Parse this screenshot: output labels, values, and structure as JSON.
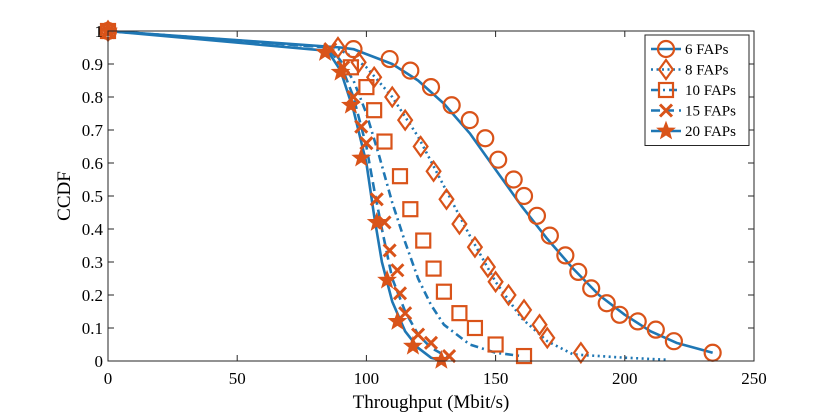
{
  "chart_data": {
    "type": "line",
    "title": "",
    "xlabel": "Throughput (Mbit/s)",
    "ylabel": "CCDF",
    "xlim": [
      0,
      250
    ],
    "ylim": [
      0,
      1
    ],
    "xticks": [
      0,
      50,
      100,
      150,
      200,
      250
    ],
    "yticks": [
      0,
      0.1,
      0.2,
      0.3,
      0.4,
      0.5,
      0.6,
      0.7,
      0.8,
      0.9,
      1
    ],
    "ytick_labels": [
      "0",
      "0.1",
      "0.2",
      "0.3",
      "0.4",
      "0.5",
      "0.6",
      "0.7",
      "0.8",
      "0.9",
      "1"
    ],
    "grid": false,
    "legend_position": "top-right",
    "line_color": "#1f77b4",
    "marker_color": "#d95319",
    "series": [
      {
        "name": "6 FAPs",
        "marker": "circle",
        "line_style": "solid",
        "curve": [
          [
            0,
            1
          ],
          [
            90,
            0.95
          ],
          [
            95,
            0.945
          ],
          [
            100,
            0.93
          ],
          [
            110,
            0.9
          ],
          [
            120,
            0.85
          ],
          [
            130,
            0.78
          ],
          [
            140,
            0.69
          ],
          [
            150,
            0.58
          ],
          [
            160,
            0.47
          ],
          [
            170,
            0.37
          ],
          [
            180,
            0.28
          ],
          [
            190,
            0.2
          ],
          [
            200,
            0.14
          ],
          [
            210,
            0.09
          ],
          [
            220,
            0.055
          ],
          [
            234,
            0.025
          ]
        ],
        "markers": [
          [
            0,
            1
          ],
          [
            95,
            0.945
          ],
          [
            109,
            0.915
          ],
          [
            117,
            0.88
          ],
          [
            125,
            0.83
          ],
          [
            133,
            0.775
          ],
          [
            140,
            0.73
          ],
          [
            146,
            0.675
          ],
          [
            151,
            0.61
          ],
          [
            157,
            0.55
          ],
          [
            161,
            0.5
          ],
          [
            166,
            0.44
          ],
          [
            171,
            0.38
          ],
          [
            177,
            0.32
          ],
          [
            182,
            0.27
          ],
          [
            187,
            0.22
          ],
          [
            193,
            0.175
          ],
          [
            198,
            0.14
          ],
          [
            205,
            0.12
          ],
          [
            212,
            0.095
          ],
          [
            219,
            0.06
          ],
          [
            234,
            0.025
          ]
        ]
      },
      {
        "name": "8 FAPs",
        "marker": "diamond",
        "line_style": "dotted",
        "curve": [
          [
            0,
            1
          ],
          [
            88,
            0.95
          ],
          [
            95,
            0.92
          ],
          [
            100,
            0.89
          ],
          [
            110,
            0.8
          ],
          [
            120,
            0.68
          ],
          [
            130,
            0.53
          ],
          [
            140,
            0.38
          ],
          [
            150,
            0.24
          ],
          [
            160,
            0.13
          ],
          [
            170,
            0.06
          ],
          [
            180,
            0.02
          ],
          [
            200,
            0.01
          ],
          [
            216,
            0.004
          ]
        ],
        "markers": [
          [
            0,
            1
          ],
          [
            89,
            0.95
          ],
          [
            97,
            0.905
          ],
          [
            103,
            0.86
          ],
          [
            110,
            0.8
          ],
          [
            115,
            0.73
          ],
          [
            121,
            0.65
          ],
          [
            126,
            0.575
          ],
          [
            131,
            0.49
          ],
          [
            136,
            0.415
          ],
          [
            142,
            0.345
          ],
          [
            147,
            0.285
          ],
          [
            150,
            0.24
          ],
          [
            155,
            0.2
          ],
          [
            161,
            0.155
          ],
          [
            167,
            0.11
          ],
          [
            170,
            0.07
          ],
          [
            183,
            0.025
          ]
        ]
      },
      {
        "name": "10 FAPs",
        "marker": "square",
        "line_style": "dashdot",
        "curve": [
          [
            0,
            1
          ],
          [
            86,
            0.95
          ],
          [
            90,
            0.91
          ],
          [
            95,
            0.85
          ],
          [
            100,
            0.75
          ],
          [
            105,
            0.62
          ],
          [
            110,
            0.48
          ],
          [
            115,
            0.36
          ],
          [
            120,
            0.25
          ],
          [
            125,
            0.17
          ],
          [
            130,
            0.11
          ],
          [
            140,
            0.05
          ],
          [
            150,
            0.025
          ],
          [
            160,
            0.015
          ]
        ],
        "markers": [
          [
            0,
            1
          ],
          [
            94,
            0.89
          ],
          [
            100,
            0.83
          ],
          [
            103,
            0.76
          ],
          [
            107,
            0.665
          ],
          [
            113,
            0.56
          ],
          [
            117,
            0.46
          ],
          [
            122,
            0.365
          ],
          [
            126,
            0.28
          ],
          [
            130,
            0.21
          ],
          [
            136,
            0.145
          ],
          [
            142,
            0.1
          ],
          [
            150,
            0.05
          ],
          [
            161,
            0.015
          ]
        ]
      },
      {
        "name": "15 FAPs",
        "marker": "x",
        "line_style": "dashed",
        "curve": [
          [
            0,
            1
          ],
          [
            85,
            0.95
          ],
          [
            90,
            0.9
          ],
          [
            95,
            0.8
          ],
          [
            100,
            0.65
          ],
          [
            103,
            0.52
          ],
          [
            106,
            0.4
          ],
          [
            110,
            0.25
          ],
          [
            115,
            0.15
          ],
          [
            120,
            0.08
          ],
          [
            125,
            0.04
          ],
          [
            132,
            0.01
          ]
        ],
        "markers": [
          [
            0,
            1
          ],
          [
            86,
            0.945
          ],
          [
            91,
            0.89
          ],
          [
            95,
            0.8
          ],
          [
            98,
            0.71
          ],
          [
            100,
            0.66
          ],
          [
            104,
            0.49
          ],
          [
            107,
            0.42
          ],
          [
            109,
            0.335
          ],
          [
            112,
            0.275
          ],
          [
            113,
            0.205
          ],
          [
            115,
            0.145
          ],
          [
            120,
            0.08
          ],
          [
            125,
            0.055
          ],
          [
            132,
            0.015
          ]
        ]
      },
      {
        "name": "20 FAPs",
        "marker": "star",
        "line_style": "solid",
        "curve": [
          [
            0,
            1
          ],
          [
            85,
            0.94
          ],
          [
            90,
            0.88
          ],
          [
            95,
            0.76
          ],
          [
            100,
            0.6
          ],
          [
            103,
            0.44
          ],
          [
            106,
            0.3
          ],
          [
            110,
            0.18
          ],
          [
            115,
            0.09
          ],
          [
            120,
            0.04
          ],
          [
            125,
            0.01
          ],
          [
            129,
            0.002
          ]
        ],
        "markers": [
          [
            0,
            1
          ],
          [
            84,
            0.935
          ],
          [
            90,
            0.875
          ],
          [
            94,
            0.775
          ],
          [
            98,
            0.615
          ],
          [
            104,
            0.42
          ],
          [
            108,
            0.245
          ],
          [
            112,
            0.12
          ],
          [
            118,
            0.045
          ],
          [
            129,
            0.002
          ]
        ]
      }
    ]
  }
}
